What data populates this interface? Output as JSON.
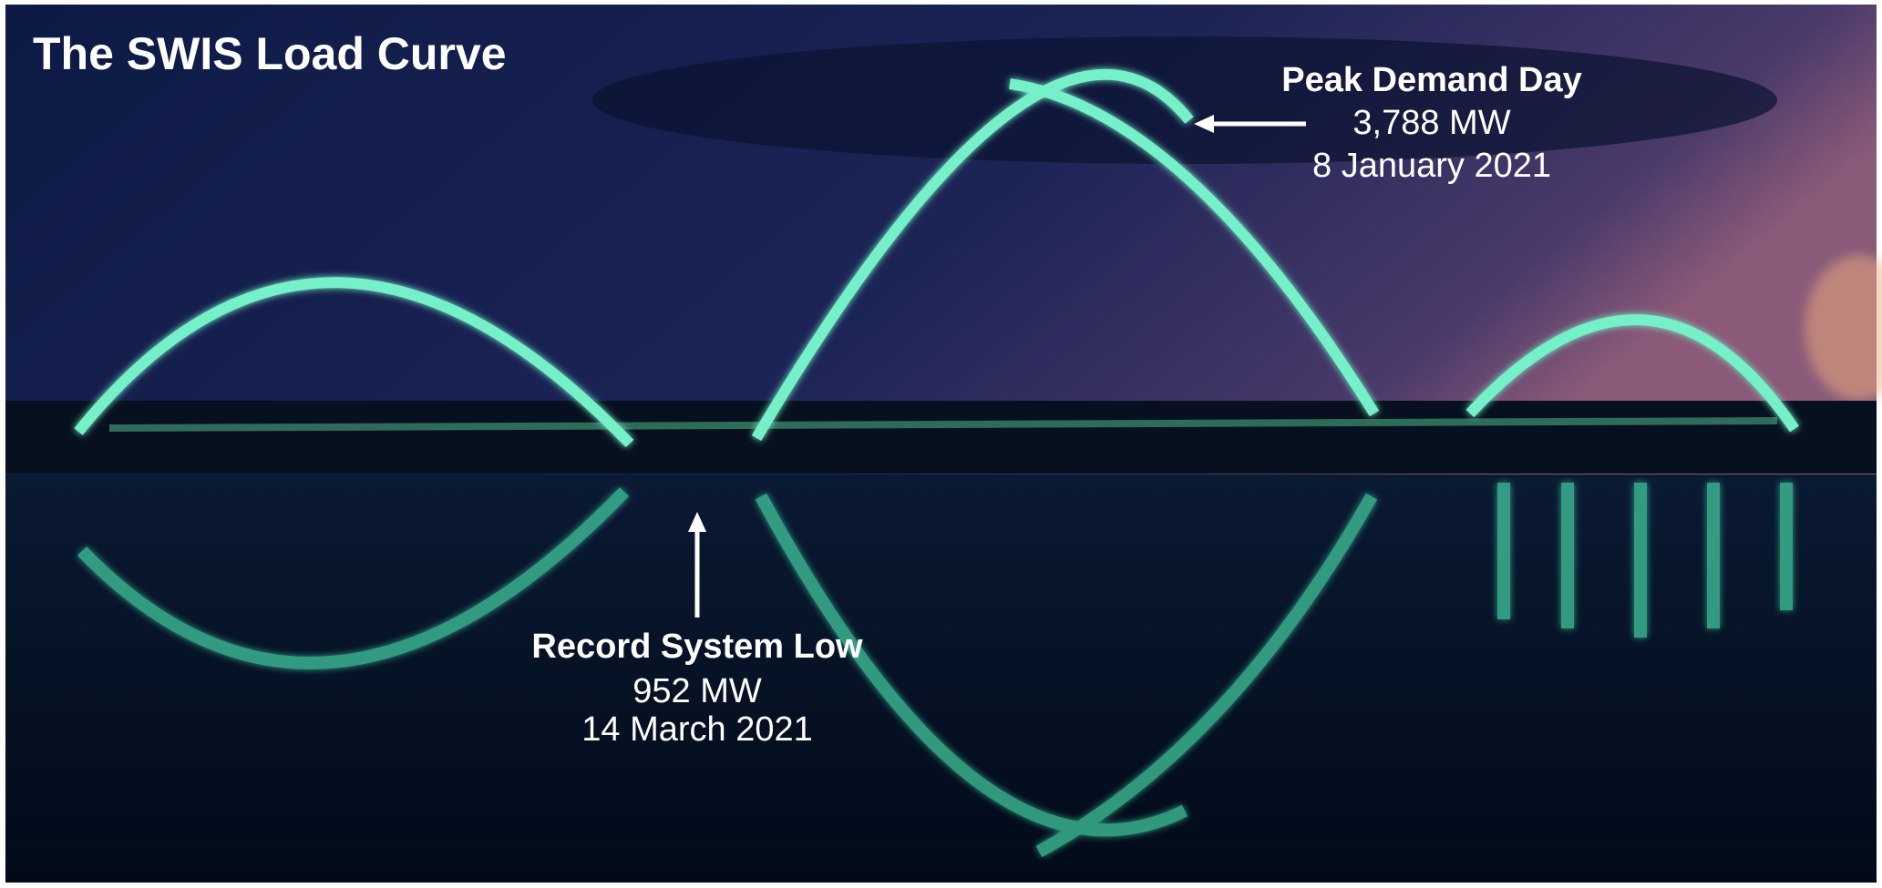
{
  "title": "The SWIS Load Curve",
  "peak": {
    "label": "Peak Demand Day",
    "value": "3,788 MW",
    "date": "8 January 2021"
  },
  "low": {
    "label": "Record System Low",
    "value": "952 MW",
    "date": "14 March 2021"
  }
}
